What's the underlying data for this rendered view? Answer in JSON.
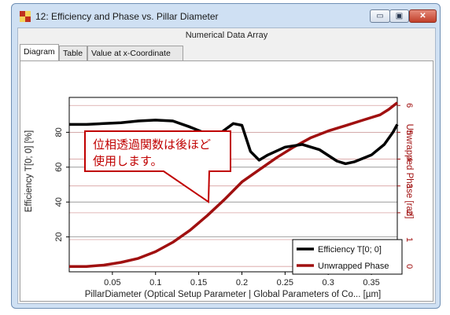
{
  "window": {
    "title": "12: Efficiency and Phase vs. Pillar Diameter",
    "header": "Numerical Data Array",
    "minimize_symbol": "▭",
    "maximize_symbol": "▣",
    "close_symbol": "✕"
  },
  "tabs": [
    {
      "label": "Diagram",
      "active": true
    },
    {
      "label": "Table",
      "active": false
    },
    {
      "label": "Value at x-Coordinate",
      "active": false
    }
  ],
  "callout": {
    "line1": "位相透過関数は後ほど",
    "line2": "使用します。",
    "color": "#c00000"
  },
  "chart_data": {
    "type": "line",
    "xlabel": "PillarDiameter (Optical Setup Parameter | Global Parameters of Co... [µm]",
    "ylabel_left": "Efficiency T[0; 0] [%]",
    "ylabel_right": "Unwrapped Phase [rad]",
    "xlim": [
      0,
      0.38
    ],
    "ylim_left": [
      0,
      100
    ],
    "ylim_right": [
      -0.2,
      6.3
    ],
    "x_ticks": [
      "0.05",
      "0.1",
      "0.15",
      "0.2",
      "0.25",
      "0.3",
      "0.35"
    ],
    "y_ticks_left": [
      "20",
      "40",
      "60",
      "80"
    ],
    "y_ticks_right": [
      "0",
      "1",
      "2",
      "3",
      "4",
      "5",
      "6"
    ],
    "legend_position": "bottom-right",
    "series": [
      {
        "name": "Efficiency T[0; 0]",
        "axis": "left",
        "color": "#000000",
        "x": [
          0,
          0.02,
          0.04,
          0.06,
          0.08,
          0.1,
          0.12,
          0.14,
          0.16,
          0.175,
          0.19,
          0.2,
          0.21,
          0.22,
          0.23,
          0.25,
          0.27,
          0.29,
          0.31,
          0.32,
          0.33,
          0.35,
          0.365,
          0.375,
          0.38
        ],
        "values": [
          84.5,
          84.5,
          85,
          85.5,
          86.5,
          87,
          86.5,
          83,
          79,
          79.5,
          85,
          84,
          69,
          64,
          67,
          71.5,
          73,
          70,
          63.5,
          62,
          63,
          67,
          73,
          80,
          84.5
        ]
      },
      {
        "name": "Unwrapped Phase",
        "axis": "right",
        "color": "#a01010",
        "x": [
          0,
          0.02,
          0.04,
          0.06,
          0.08,
          0.1,
          0.12,
          0.14,
          0.16,
          0.18,
          0.2,
          0.22,
          0.24,
          0.26,
          0.28,
          0.3,
          0.32,
          0.34,
          0.36,
          0.37,
          0.38
        ],
        "values": [
          0,
          0,
          0.05,
          0.15,
          0.3,
          0.55,
          0.9,
          1.35,
          1.9,
          2.5,
          3.15,
          3.6,
          4.05,
          4.45,
          4.8,
          5.05,
          5.25,
          5.45,
          5.65,
          5.85,
          6.1
        ]
      }
    ]
  }
}
